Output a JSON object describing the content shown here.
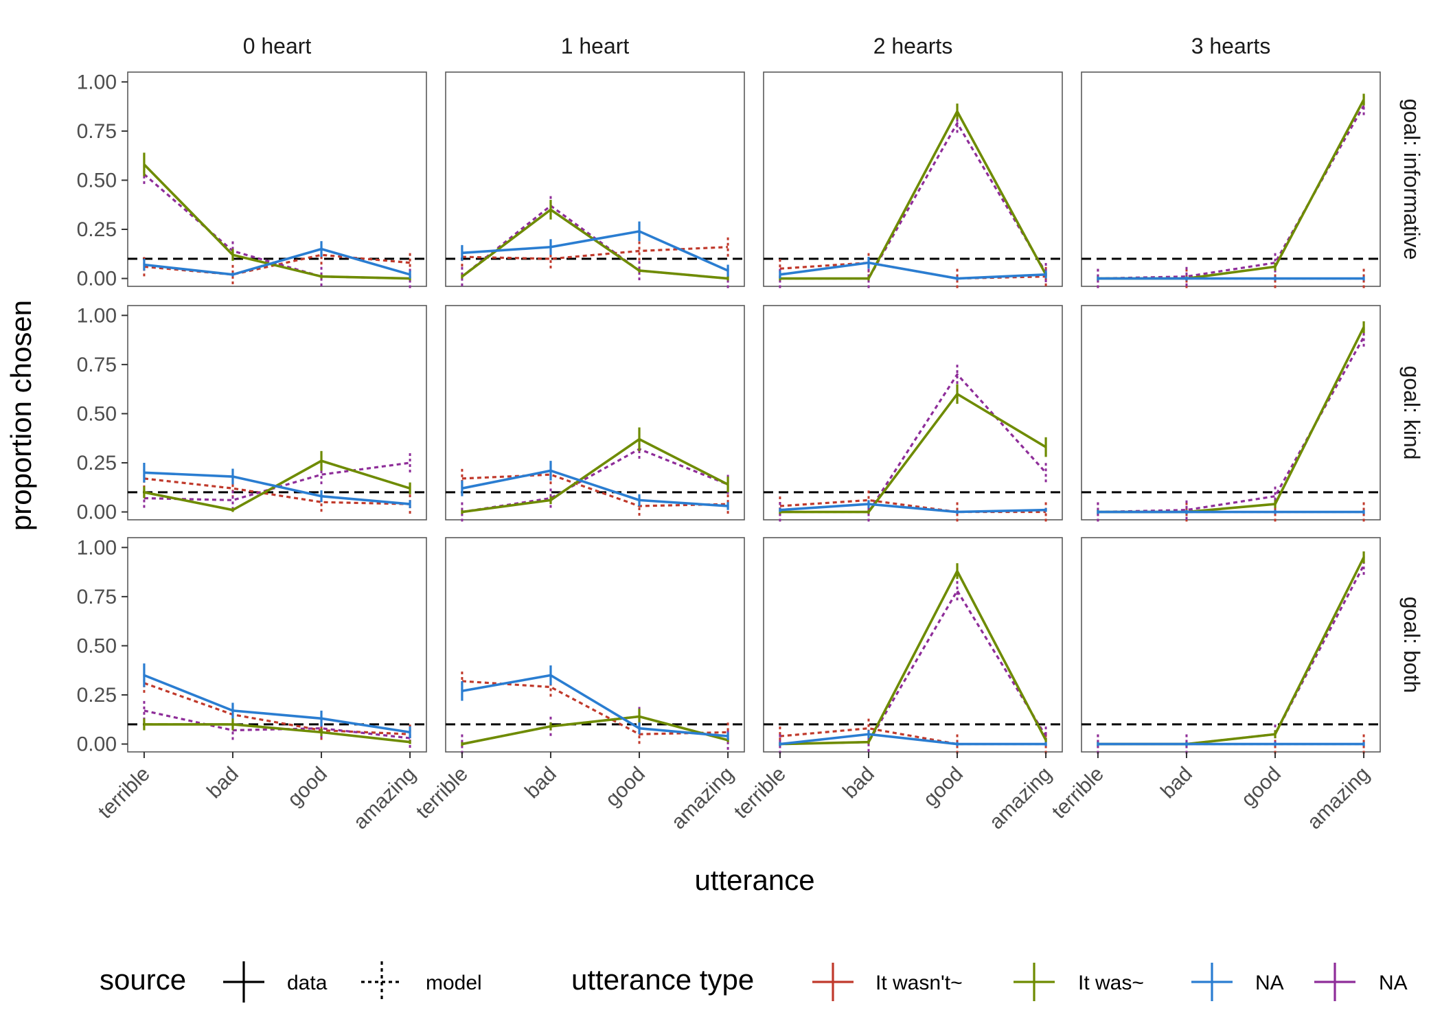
{
  "chart_data": {
    "type": "line",
    "facet_cols": [
      "0 heart",
      "1 heart",
      "2 hearts",
      "3 hearts"
    ],
    "facet_rows": [
      "goal: informative",
      "goal: kind",
      "goal: both"
    ],
    "categories": [
      "terrible",
      "bad",
      "good",
      "amazing"
    ],
    "xlabel": "utterance",
    "ylabel": "proportion chosen",
    "ylim": [
      -0.04,
      1.05
    ],
    "yticks": [
      "0.00",
      "0.25",
      "0.50",
      "0.75",
      "1.00"
    ],
    "ytick_values": [
      0,
      0.25,
      0.5,
      0.75,
      1
    ],
    "reference_line": 0.1,
    "colors": {
      "It wasn't~": "#c0392b",
      "It was~": "#6e8b00",
      "NA_blue": "#2a7dd1",
      "NA_purple": "#8e2d99"
    },
    "legend": {
      "source_title": "source",
      "source_items": [
        {
          "label": "data",
          "style": "solid"
        },
        {
          "label": "model",
          "style": "dotted"
        }
      ],
      "type_title": "utterance type",
      "type_items": [
        {
          "label": "It wasn't~",
          "color": "#c0392b"
        },
        {
          "label": "It was~",
          "color": "#6e8b00"
        },
        {
          "label": "NA",
          "color": "#2a7dd1"
        },
        {
          "label": "NA",
          "color": "#8e2d99"
        }
      ],
      "position": "bottom"
    },
    "panels": [
      {
        "row": 0,
        "col": 0,
        "data": [
          {
            "series": "It was~",
            "values": [
              0.58,
              0.12,
              0.01,
              0.0
            ],
            "errors": [
              0.06,
              0.03,
              0.01,
              0.01
            ]
          },
          {
            "series": "NA_blue",
            "values": [
              0.07,
              0.02,
              0.15,
              0.02
            ],
            "errors": [
              0.03,
              0.01,
              0.04,
              0.02
            ]
          }
        ],
        "model": [
          {
            "series": "It wasn't~",
            "values": [
              0.06,
              0.02,
              0.12,
              0.08
            ]
          },
          {
            "series": "NA_purple",
            "values": [
              0.53,
              0.14,
              0.01,
              0.0
            ]
          }
        ]
      },
      {
        "row": 0,
        "col": 1,
        "data": [
          {
            "series": "It was~",
            "values": [
              0.01,
              0.35,
              0.04,
              0.0
            ],
            "errors": [
              0.01,
              0.05,
              0.01,
              0.01
            ]
          },
          {
            "series": "NA_blue",
            "values": [
              0.13,
              0.16,
              0.24,
              0.04
            ],
            "errors": [
              0.04,
              0.04,
              0.05,
              0.03
            ]
          }
        ],
        "model": [
          {
            "series": "It wasn't~",
            "values": [
              0.11,
              0.1,
              0.14,
              0.16
            ]
          },
          {
            "series": "NA_purple",
            "values": [
              0.01,
              0.37,
              0.04,
              0.0
            ]
          }
        ]
      },
      {
        "row": 0,
        "col": 2,
        "data": [
          {
            "series": "It was~",
            "values": [
              0.0,
              0.0,
              0.85,
              0.02
            ],
            "errors": [
              0.01,
              0.01,
              0.04,
              0.01
            ]
          },
          {
            "series": "NA_blue",
            "values": [
              0.02,
              0.08,
              0.0,
              0.02
            ],
            "errors": [
              0.02,
              0.03,
              0.01,
              0.02
            ]
          }
        ],
        "model": [
          {
            "series": "It wasn't~",
            "values": [
              0.05,
              0.08,
              0.0,
              0.01
            ]
          },
          {
            "series": "NA_purple",
            "values": [
              0.0,
              0.0,
              0.79,
              0.03
            ]
          }
        ]
      },
      {
        "row": 0,
        "col": 3,
        "data": [
          {
            "series": "It was~",
            "values": [
              0.0,
              0.0,
              0.06,
              0.91
            ],
            "errors": [
              0.01,
              0.01,
              0.02,
              0.03
            ]
          },
          {
            "series": "NA_blue",
            "values": [
              0.0,
              0.0,
              0.0,
              0.0
            ],
            "errors": [
              0.01,
              0.01,
              0.01,
              0.01
            ]
          }
        ],
        "model": [
          {
            "series": "It wasn't~",
            "values": [
              0.0,
              0.0,
              0.0,
              0.0
            ]
          },
          {
            "series": "NA_purple",
            "values": [
              0.0,
              0.01,
              0.08,
              0.88
            ]
          }
        ]
      },
      {
        "row": 1,
        "col": 0,
        "data": [
          {
            "series": "It was~",
            "values": [
              0.1,
              0.01,
              0.26,
              0.12
            ],
            "errors": [
              0.03,
              0.01,
              0.05,
              0.03
            ]
          },
          {
            "series": "NA_blue",
            "values": [
              0.2,
              0.18,
              0.08,
              0.04
            ],
            "errors": [
              0.05,
              0.04,
              0.03,
              0.02
            ]
          }
        ],
        "model": [
          {
            "series": "It wasn't~",
            "values": [
              0.17,
              0.12,
              0.05,
              0.04
            ]
          },
          {
            "series": "NA_purple",
            "values": [
              0.07,
              0.06,
              0.19,
              0.25
            ]
          }
        ]
      },
      {
        "row": 1,
        "col": 1,
        "data": [
          {
            "series": "It was~",
            "values": [
              0.0,
              0.06,
              0.37,
              0.14
            ],
            "errors": [
              0.01,
              0.02,
              0.06,
              0.04
            ]
          },
          {
            "series": "NA_blue",
            "values": [
              0.12,
              0.21,
              0.06,
              0.03
            ],
            "errors": [
              0.04,
              0.05,
              0.03,
              0.02
            ]
          }
        ],
        "model": [
          {
            "series": "It wasn't~",
            "values": [
              0.17,
              0.19,
              0.03,
              0.04
            ]
          },
          {
            "series": "NA_purple",
            "values": [
              0.0,
              0.07,
              0.32,
              0.14
            ]
          }
        ]
      },
      {
        "row": 1,
        "col": 2,
        "data": [
          {
            "series": "It was~",
            "values": [
              0.0,
              0.0,
              0.6,
              0.33
            ],
            "errors": [
              0.01,
              0.01,
              0.05,
              0.05
            ]
          },
          {
            "series": "NA_blue",
            "values": [
              0.01,
              0.04,
              0.0,
              0.01
            ],
            "errors": [
              0.01,
              0.02,
              0.01,
              0.01
            ]
          }
        ],
        "model": [
          {
            "series": "It wasn't~",
            "values": [
              0.03,
              0.06,
              0.0,
              0.0
            ]
          },
          {
            "series": "NA_purple",
            "values": [
              0.0,
              0.0,
              0.7,
              0.2
            ]
          }
        ]
      },
      {
        "row": 1,
        "col": 3,
        "data": [
          {
            "series": "It was~",
            "values": [
              0.0,
              0.0,
              0.04,
              0.94
            ],
            "errors": [
              0.01,
              0.01,
              0.02,
              0.03
            ]
          },
          {
            "series": "NA_blue",
            "values": [
              0.0,
              0.0,
              0.0,
              0.0
            ],
            "errors": [
              0.01,
              0.01,
              0.01,
              0.01
            ]
          }
        ],
        "model": [
          {
            "series": "It wasn't~",
            "values": [
              0.0,
              0.0,
              0.0,
              0.0
            ]
          },
          {
            "series": "NA_purple",
            "values": [
              0.0,
              0.01,
              0.08,
              0.89
            ]
          }
        ]
      },
      {
        "row": 2,
        "col": 0,
        "data": [
          {
            "series": "It was~",
            "values": [
              0.1,
              0.1,
              0.06,
              0.01
            ],
            "errors": [
              0.03,
              0.03,
              0.02,
              0.01
            ]
          },
          {
            "series": "NA_blue",
            "values": [
              0.35,
              0.17,
              0.13,
              0.06
            ],
            "errors": [
              0.06,
              0.04,
              0.04,
              0.03
            ]
          }
        ],
        "model": [
          {
            "series": "It wasn't~",
            "values": [
              0.31,
              0.15,
              0.07,
              0.05
            ]
          },
          {
            "series": "NA_purple",
            "values": [
              0.17,
              0.07,
              0.08,
              0.03
            ]
          }
        ]
      },
      {
        "row": 2,
        "col": 1,
        "data": [
          {
            "series": "It was~",
            "values": [
              0.0,
              0.09,
              0.14,
              0.02
            ],
            "errors": [
              0.01,
              0.02,
              0.04,
              0.01
            ]
          },
          {
            "series": "NA_blue",
            "values": [
              0.27,
              0.35,
              0.08,
              0.04
            ],
            "errors": [
              0.05,
              0.05,
              0.03,
              0.02
            ]
          }
        ],
        "model": [
          {
            "series": "It wasn't~",
            "values": [
              0.32,
              0.29,
              0.05,
              0.06
            ]
          },
          {
            "series": "NA_purple",
            "values": [
              0.0,
              0.09,
              0.14,
              0.02
            ]
          }
        ]
      },
      {
        "row": 2,
        "col": 2,
        "data": [
          {
            "series": "It was~",
            "values": [
              0.0,
              0.01,
              0.88,
              0.02
            ],
            "errors": [
              0.01,
              0.01,
              0.04,
              0.01
            ]
          },
          {
            "series": "NA_blue",
            "values": [
              0.0,
              0.05,
              0.0,
              0.0
            ],
            "errors": [
              0.01,
              0.02,
              0.01,
              0.01
            ]
          }
        ],
        "model": [
          {
            "series": "It wasn't~",
            "values": [
              0.04,
              0.08,
              0.0,
              0.0
            ]
          },
          {
            "series": "NA_purple",
            "values": [
              0.0,
              0.01,
              0.78,
              0.04
            ]
          }
        ]
      },
      {
        "row": 2,
        "col": 3,
        "data": [
          {
            "series": "It was~",
            "values": [
              0.0,
              0.0,
              0.05,
              0.95
            ],
            "errors": [
              0.01,
              0.01,
              0.02,
              0.03
            ]
          },
          {
            "series": "NA_blue",
            "values": [
              0.0,
              0.0,
              0.0,
              0.0
            ],
            "errors": [
              0.01,
              0.01,
              0.01,
              0.01
            ]
          }
        ],
        "model": [
          {
            "series": "It wasn't~",
            "values": [
              0.0,
              0.0,
              0.0,
              0.0
            ]
          },
          {
            "series": "NA_purple",
            "values": [
              0.0,
              0.0,
              0.05,
              0.91
            ]
          }
        ]
      }
    ]
  }
}
